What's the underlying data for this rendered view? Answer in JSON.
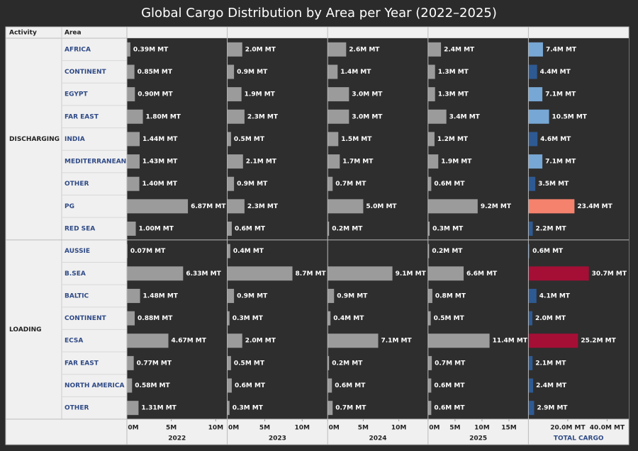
{
  "chart_data": {
    "type": "bar",
    "title": "Global Cargo Distribution by Area per Year (2022–2025)",
    "row_headers": [
      "Activity",
      "Area"
    ],
    "groups": [
      {
        "name": "DISCHARGING",
        "categories": [
          "AFRICA",
          "CONTINENT",
          "EGYPT",
          "FAR EAST",
          "INDIA",
          "MEDITERRANEAN",
          "OTHER",
          "PG",
          "RED SEA"
        ]
      },
      {
        "name": "LOADING",
        "categories": [
          "AUSSIE",
          "B.SEA",
          "BALTIC",
          "CONTINENT",
          "ECSA",
          "FAR EAST",
          "NORTH AMERICA",
          "OTHER"
        ]
      }
    ],
    "panels": [
      {
        "name": "2022",
        "color": "#9b9b9b",
        "xlim": [
          0,
          11.3
        ],
        "xticks": [
          {
            "value": 0,
            "label": "0M"
          },
          {
            "value": 5,
            "label": "5M"
          },
          {
            "value": 10,
            "label": "10M"
          }
        ],
        "values": [
          0.39,
          0.85,
          0.9,
          1.8,
          1.44,
          1.43,
          1.4,
          6.87,
          1.0,
          0.07,
          6.33,
          1.48,
          0.88,
          4.67,
          0.77,
          0.58,
          1.31
        ],
        "value_labels": [
          "0.39M MT",
          "0.85M MT",
          "0.90M MT",
          "1.80M MT",
          "1.44M MT",
          "1.43M MT",
          "1.40M MT",
          "6.87M MT",
          "1.00M MT",
          "0.07M MT",
          "6.33M MT",
          "1.48M MT",
          "0.88M MT",
          "4.67M MT",
          "0.77M MT",
          "0.58M MT",
          "1.31M MT"
        ]
      },
      {
        "name": "2023",
        "color": "#9b9b9b",
        "xlim": [
          0,
          13.4
        ],
        "xticks": [
          {
            "value": 0,
            "label": "0M"
          },
          {
            "value": 5,
            "label": "5M"
          },
          {
            "value": 10,
            "label": "10M"
          }
        ],
        "values": [
          2.0,
          0.9,
          1.9,
          2.3,
          0.5,
          2.1,
          0.9,
          2.3,
          0.6,
          0.4,
          8.7,
          0.9,
          0.3,
          2.0,
          0.5,
          0.6,
          0.3
        ],
        "value_labels": [
          "2.0M MT",
          "0.9M MT",
          "1.9M MT",
          "2.3M MT",
          "0.5M MT",
          "2.1M MT",
          "0.9M MT",
          "2.3M MT",
          "0.6M MT",
          "0.4M MT",
          "8.7M MT",
          "0.9M MT",
          "0.3M MT",
          "2.0M MT",
          "0.5M MT",
          "0.6M MT",
          "0.3M MT"
        ]
      },
      {
        "name": "2024",
        "color": "#9b9b9b",
        "xlim": [
          0,
          14.1
        ],
        "xticks": [
          {
            "value": 0,
            "label": "0M"
          },
          {
            "value": 5,
            "label": "5M"
          },
          {
            "value": 10,
            "label": "10M"
          }
        ],
        "values": [
          2.6,
          1.4,
          3.0,
          3.0,
          1.5,
          1.7,
          0.7,
          5.0,
          0.2,
          null,
          9.1,
          0.9,
          0.4,
          7.1,
          0.2,
          0.6,
          0.7
        ],
        "value_labels": [
          "2.6M MT",
          "1.4M MT",
          "3.0M MT",
          "3.0M MT",
          "1.5M MT",
          "1.7M MT",
          "0.7M MT",
          "5.0M MT",
          "0.2M MT",
          null,
          "9.1M MT",
          "0.9M MT",
          "0.4M MT",
          "7.1M MT",
          "0.2M MT",
          "0.6M MT",
          "0.7M MT"
        ]
      },
      {
        "name": "2025",
        "color": "#9b9b9b",
        "xlim": [
          0,
          18.6
        ],
        "xticks": [
          {
            "value": 0,
            "label": "0M"
          },
          {
            "value": 5,
            "label": "5M"
          },
          {
            "value": 10,
            "label": "10M"
          },
          {
            "value": 15,
            "label": "15M"
          }
        ],
        "values": [
          2.4,
          1.3,
          1.3,
          3.4,
          1.2,
          1.9,
          0.6,
          9.2,
          0.3,
          0.2,
          6.6,
          0.8,
          0.5,
          11.4,
          0.7,
          0.6,
          0.6
        ],
        "value_labels": [
          "2.4M MT",
          "1.3M MT",
          "1.3M MT",
          "3.4M MT",
          "1.2M MT",
          "1.9M MT",
          "0.6M MT",
          "9.2M MT",
          "0.3M MT",
          "0.2M MT",
          "6.6M MT",
          "0.8M MT",
          "0.5M MT",
          "11.4M MT",
          "0.7M MT",
          "0.6M MT",
          "0.6M MT"
        ]
      },
      {
        "name": "TOTAL CARGO",
        "xlim": [
          0,
          51
        ],
        "xticks": [
          {
            "value": 20,
            "label": "20.0M MT"
          },
          {
            "value": 40,
            "label": "40.0M MT"
          }
        ],
        "values": [
          7.4,
          4.4,
          7.1,
          10.5,
          4.6,
          7.1,
          3.5,
          23.4,
          2.2,
          0.6,
          30.7,
          4.1,
          2.0,
          25.2,
          2.1,
          2.4,
          2.9
        ],
        "value_labels": [
          "7.4M MT",
          "4.4M MT",
          "7.1M MT",
          "10.5M MT",
          "4.6M MT",
          "7.1M MT",
          "3.5M MT",
          "23.4M MT",
          "2.2M MT",
          "0.6M MT",
          "30.7M MT",
          "4.1M MT",
          "2.0M MT",
          "25.2M MT",
          "2.1M MT",
          "2.4M MT",
          "2.9M MT"
        ],
        "colors": [
          "#77a7d4",
          "#2e5a93",
          "#77a7d4",
          "#77a7d4",
          "#2e5a93",
          "#77a7d4",
          "#2e5a93",
          "#f5826d",
          "#2e5a93",
          "#2e5a93",
          "#a50f36",
          "#2e5a93",
          "#2e5a93",
          "#a50f36",
          "#2e5a93",
          "#2e5a93",
          "#2e5a93"
        ]
      }
    ]
  }
}
